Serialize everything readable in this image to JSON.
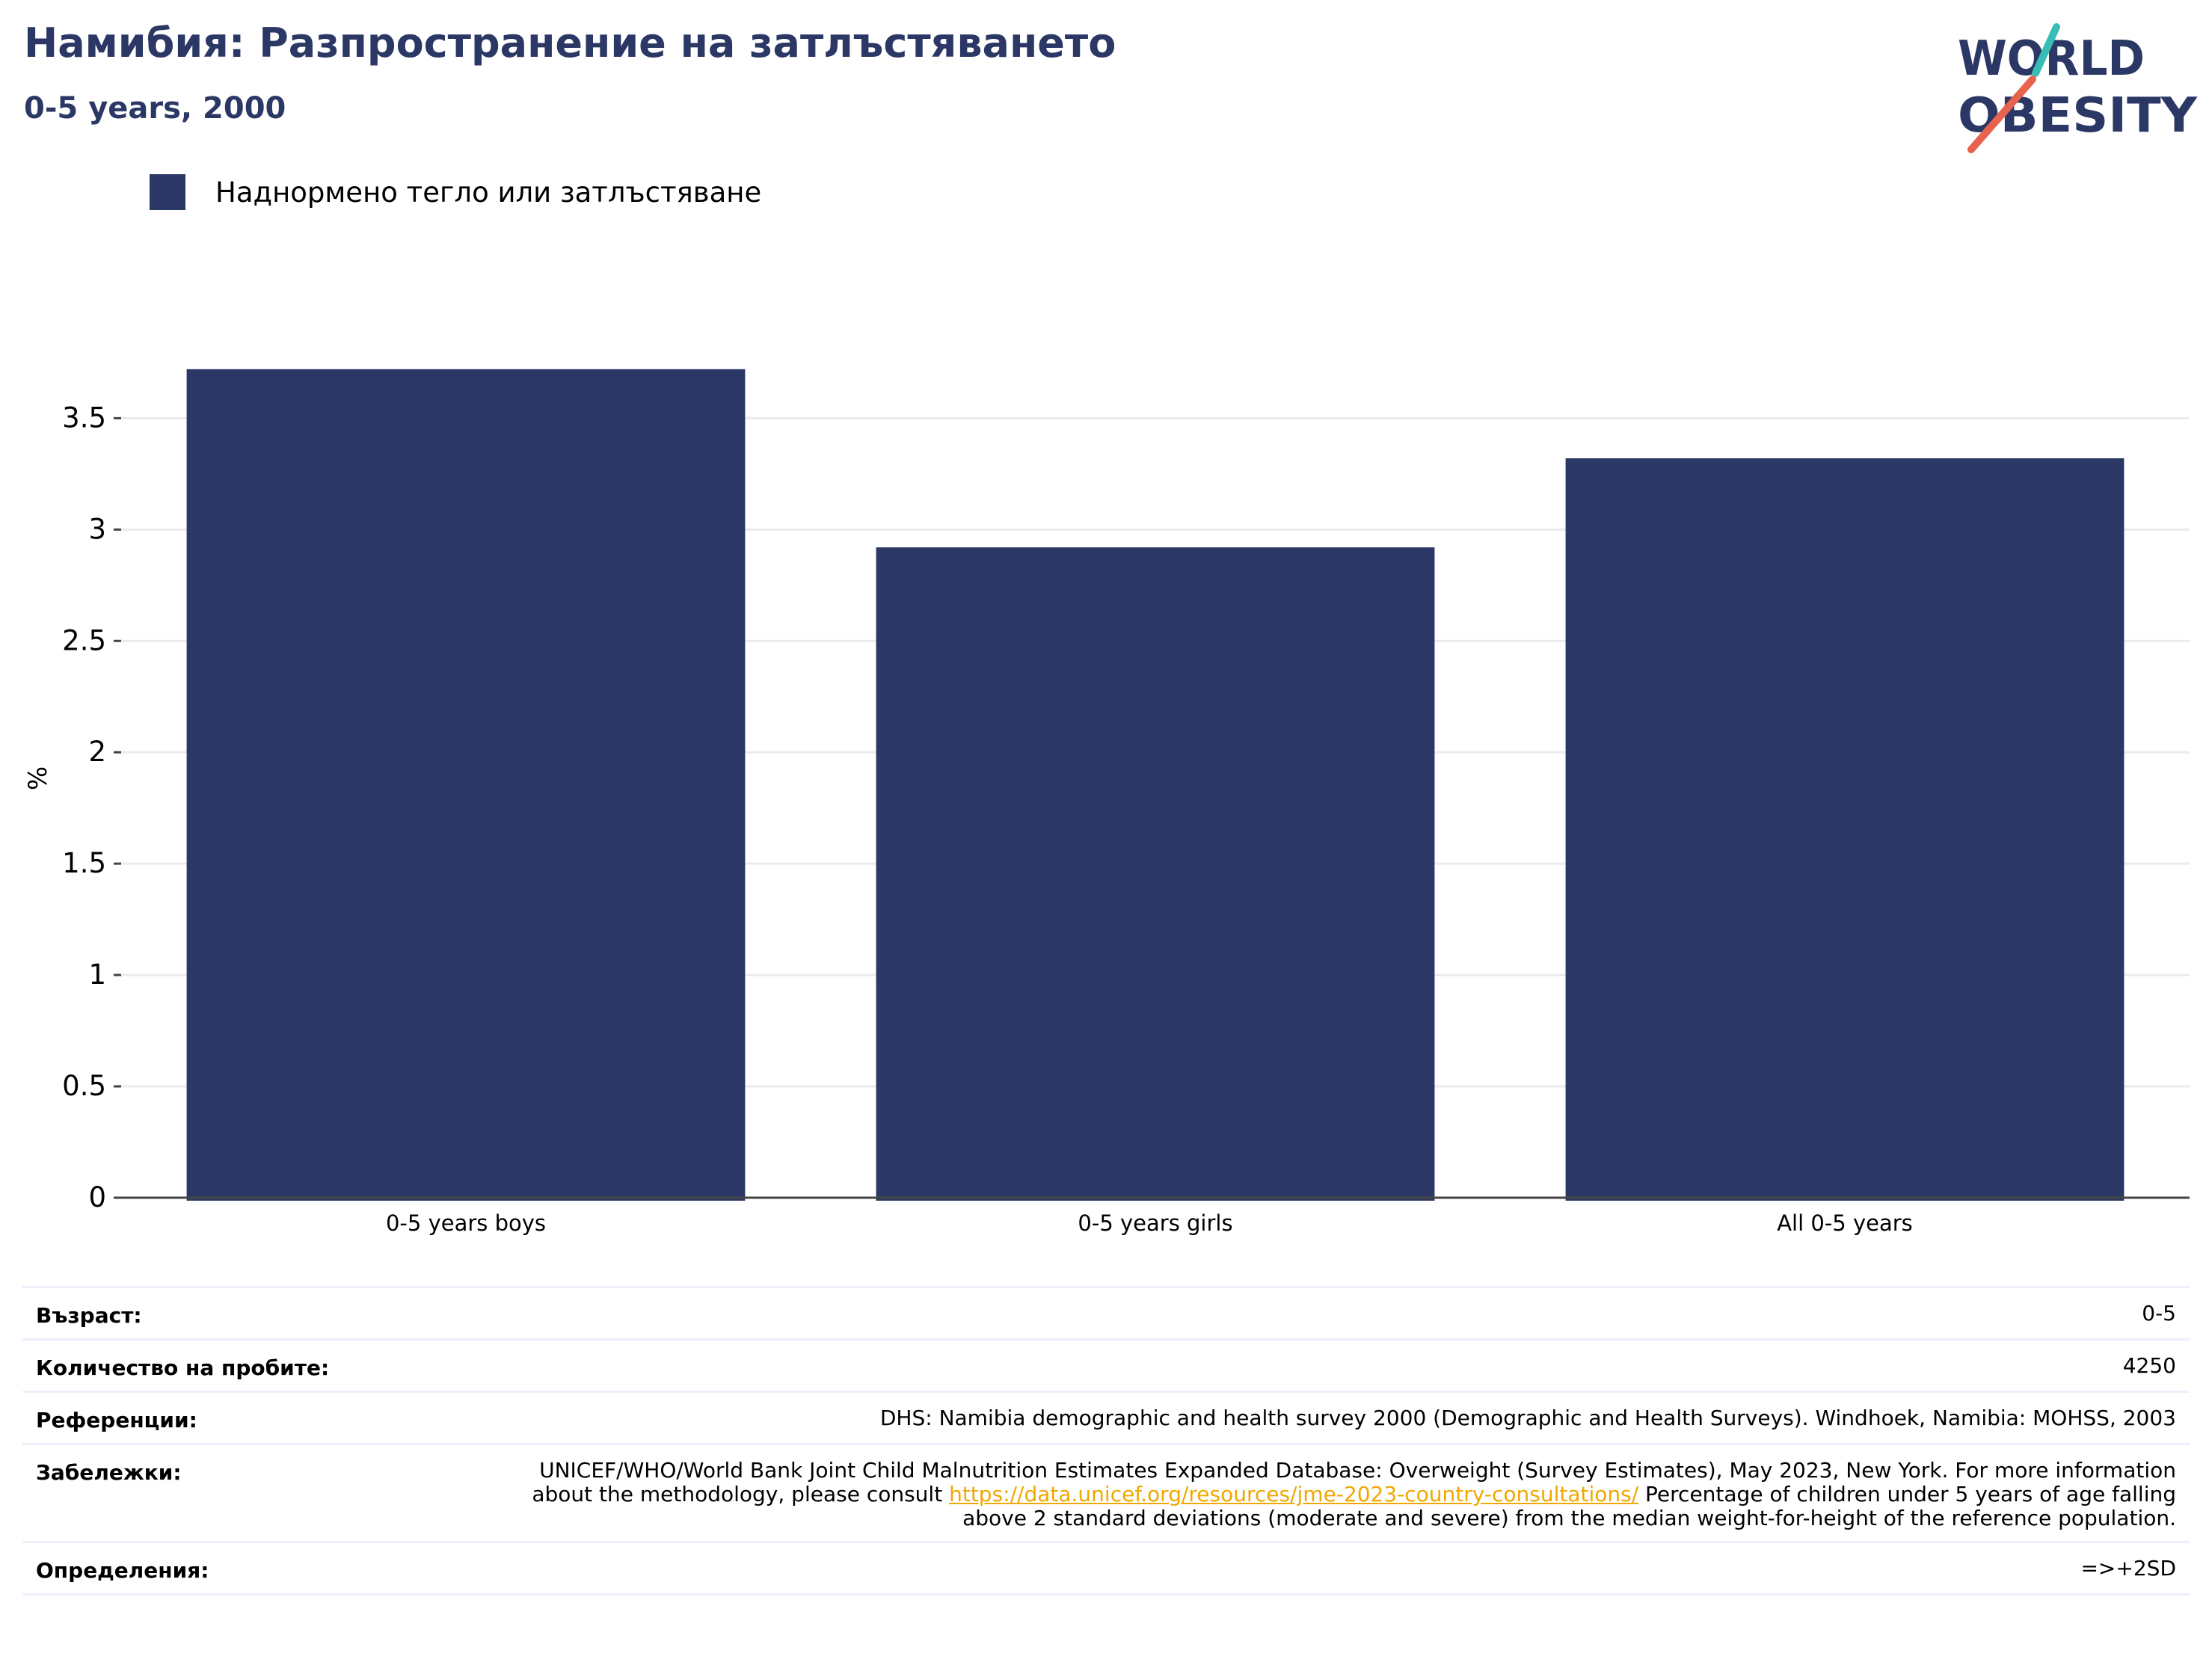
{
  "header": {
    "title": "Намибия: Разпространение на затлъстяването",
    "subtitle": "0-5 years, 2000"
  },
  "logo": {
    "line1": "WORLD",
    "line2": "OBESITY",
    "colors": [
      "#2b3764",
      "#37bdb5",
      "#e8634f"
    ]
  },
  "chart_data": {
    "type": "bar",
    "categories": [
      "0-5 years boys",
      "0-5 years girls",
      "All 0-5 years"
    ],
    "series": [
      {
        "name": "Наднормено тегло или затлъстяване",
        "values": [
          3.72,
          2.92,
          3.32
        ],
        "color": "#2b3764"
      }
    ],
    "title": "Намибия: Разпространение на затлъстяването",
    "subtitle": "0-5 years, 2000",
    "xlabel": "",
    "ylabel": "%",
    "ylim": [
      0,
      3.8
    ],
    "yticks": [
      0,
      0.5,
      1,
      1.5,
      2,
      2.5,
      3,
      3.5
    ],
    "ytick_labels": [
      "0",
      "0.5",
      "1",
      "1.5",
      "2",
      "2.5",
      "3",
      "3.5"
    ],
    "grid": true,
    "legend": "top-left"
  },
  "info": {
    "rows": [
      {
        "label": "Възраст:",
        "value": "0-5"
      },
      {
        "label": "Количество на пробите:",
        "value": "4250"
      },
      {
        "label": "Референции:",
        "value": "DHS: Namibia demographic and health survey 2000 (Demographic and Health Surveys). Windhoek, Namibia: MOHSS, 2003"
      },
      {
        "label": "Забележки:",
        "value_before": "UNICEF/WHO/World Bank Joint Child Malnutrition Estimates Expanded Database: Overweight (Survey Estimates), May 2023, New York. For more information about the methodology, please consult",
        "link": "https://data.unicef.org/resources/jme-2023-country-consultations/",
        "value_after": "Percentage of children under 5 years of age falling above 2 standard deviations (moderate and severe) from the median weight-for-height of the reference population."
      },
      {
        "label": "Определения:",
        "value": "=>+2SD"
      }
    ]
  }
}
